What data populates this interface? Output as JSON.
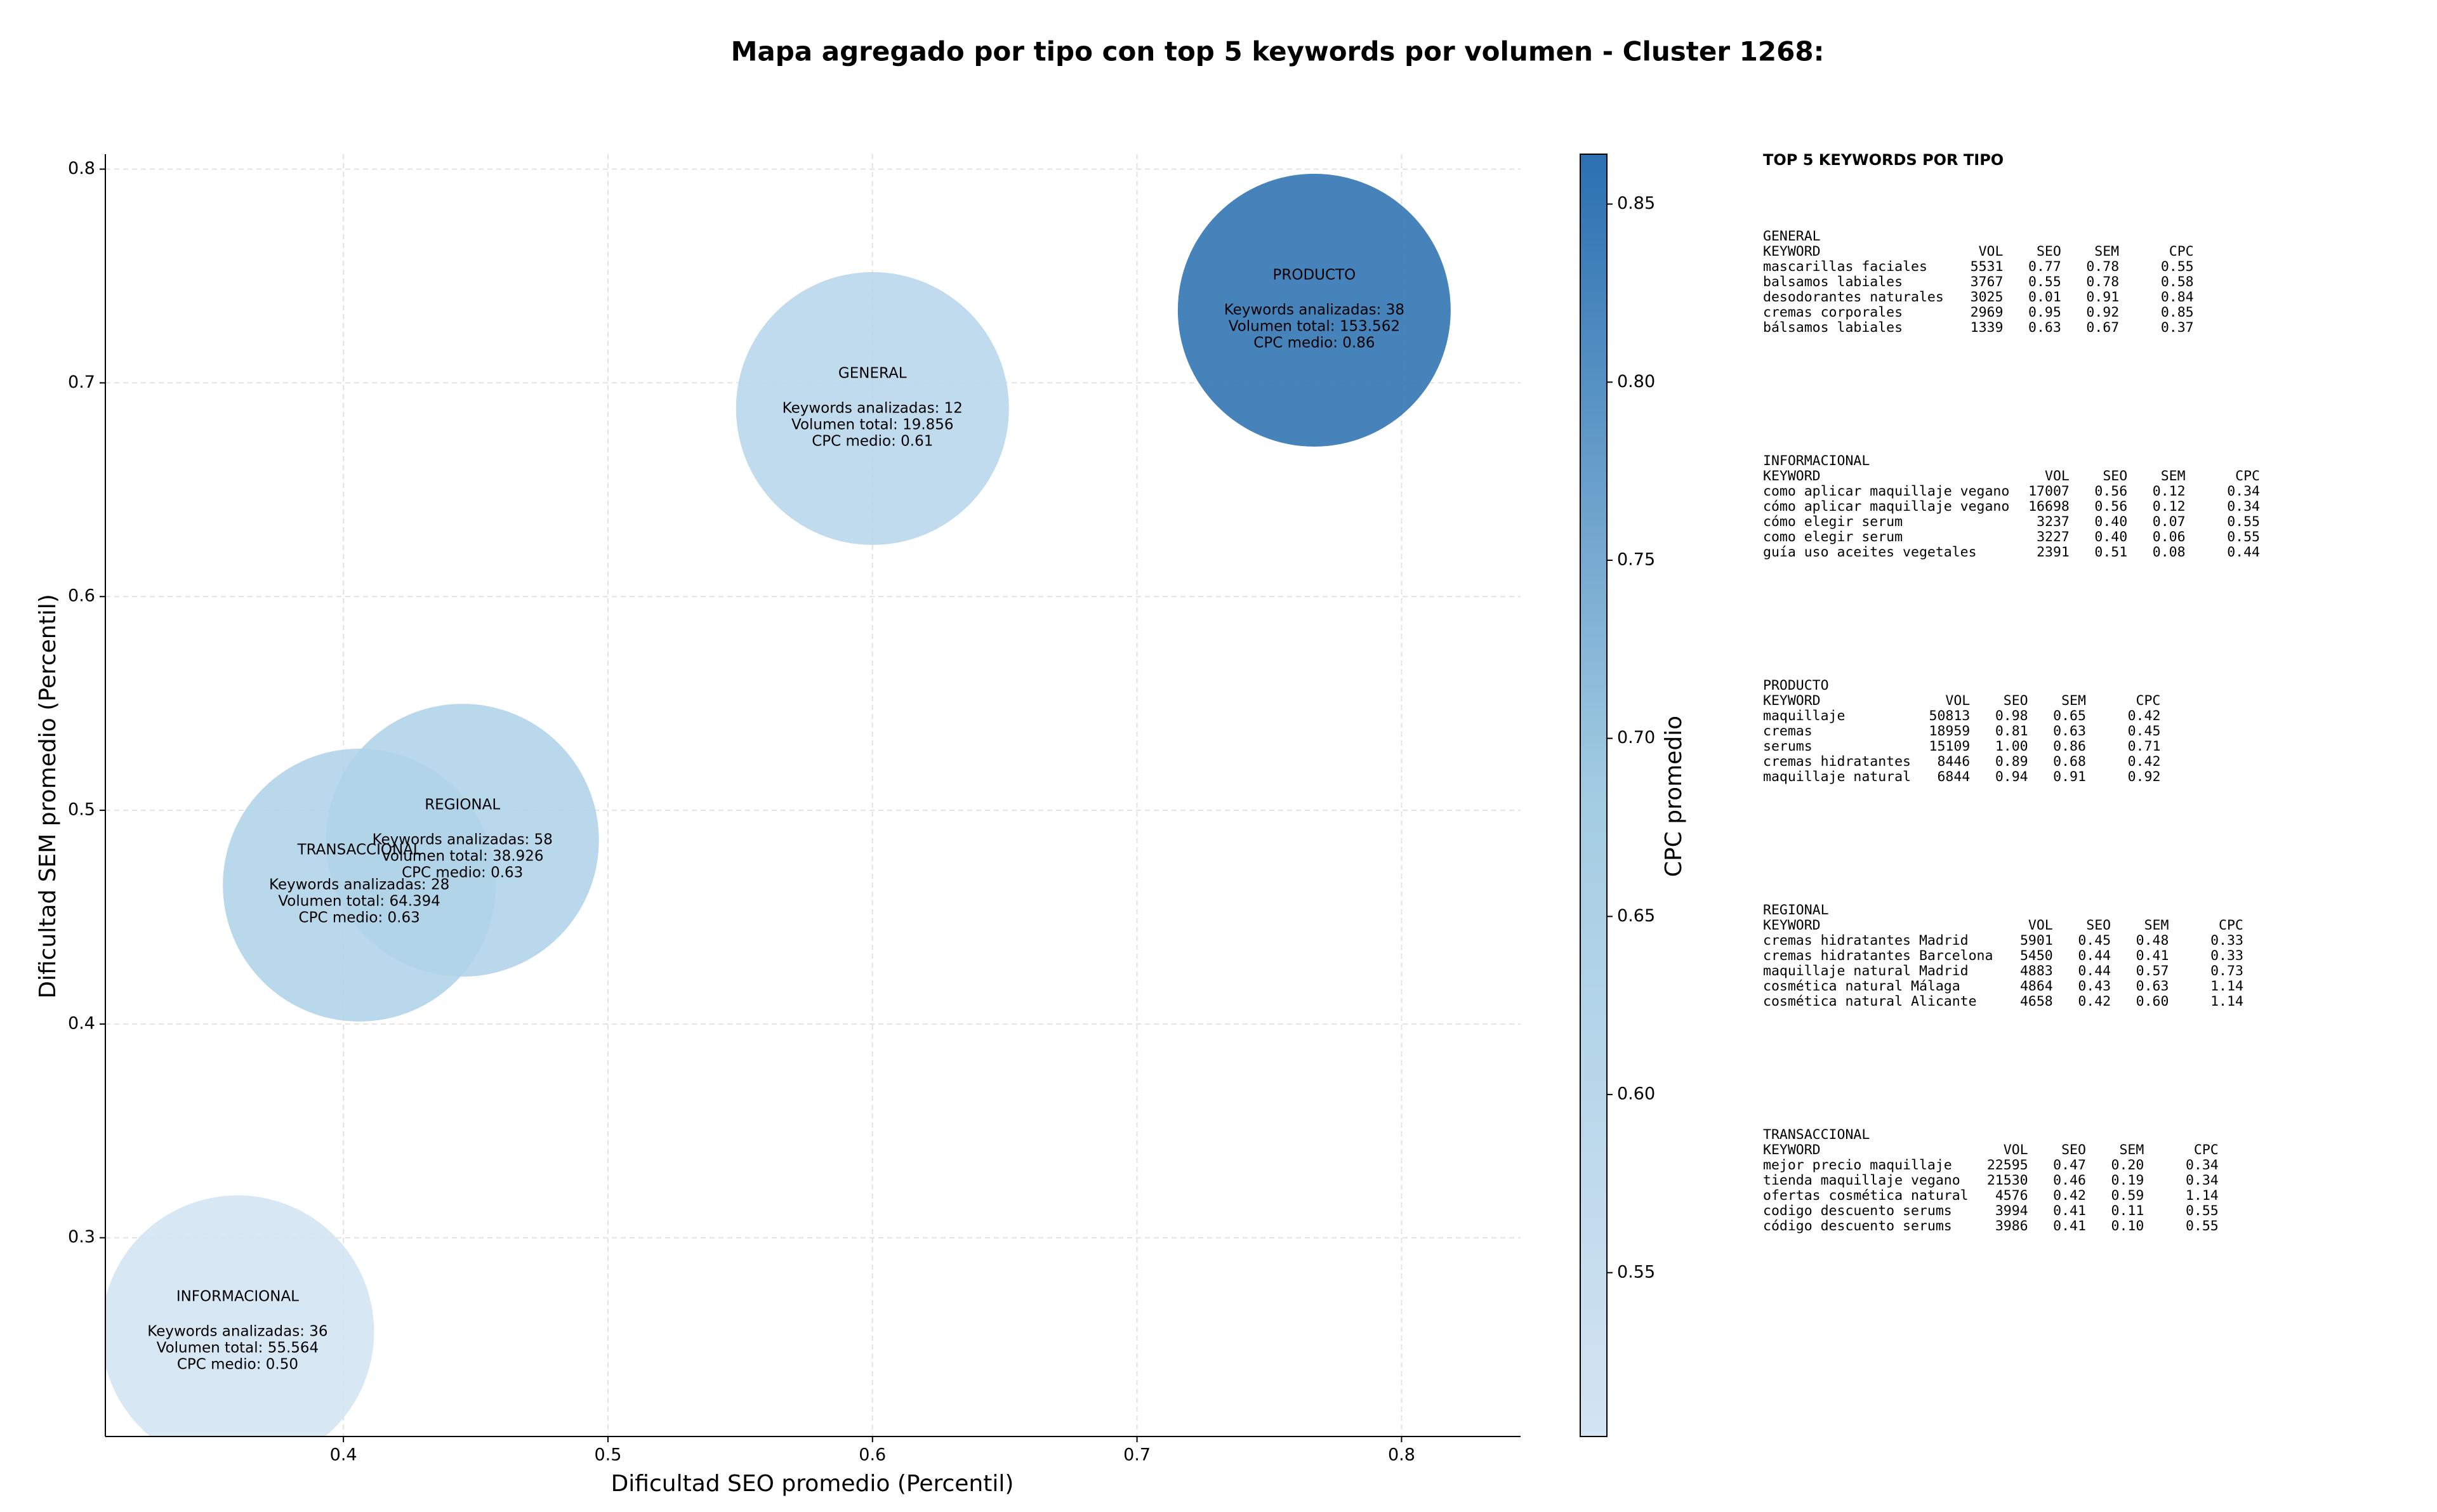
{
  "chart_data": {
    "type": "bubble",
    "title": "Mapa agregado por tipo con top 5 keywords por volumen - Cluster 1268:",
    "xlabel": "Dificultad SEO promedio (Percentil)",
    "ylabel": "Dificultad SEM promedio (Percentil)",
    "xlim": [
      0.31,
      0.845
    ],
    "xticks": [
      0.4,
      0.5,
      0.6,
      0.7,
      0.8
    ],
    "ylim": [
      0.207,
      0.807
    ],
    "yticks": [
      0.3,
      0.4,
      0.5,
      0.6,
      0.7,
      0.8
    ],
    "grid": true,
    "colorbar": {
      "label": "CPC promedio",
      "clim": [
        0.504,
        0.864
      ],
      "ticks": [
        0.55,
        {
          "value": 0.6,
          "label": "0.60"
        },
        0.65,
        {
          "value": 0.7,
          "label": "0.70"
        },
        0.75,
        {
          "value": 0.8,
          "label": "0.80"
        },
        0.85
      ],
      "colormap": [
        "#d3e4f3",
        "#a3cce3",
        "#2b70b1"
      ]
    },
    "points": [
      {
        "label": "GENERAL",
        "x": 0.6,
        "y": 0.688,
        "cpc": 0.61,
        "lines": [
          "Keywords analizadas: 12",
          "Volumen total: 19.856",
          "CPC medio: 0.61"
        ]
      },
      {
        "label": "INFORMACIONAL",
        "x": 0.36,
        "y": 0.256,
        "cpc": 0.5,
        "lines": [
          "Keywords analizadas: 36",
          "Volumen total: 55.564",
          "CPC medio: 0.50"
        ]
      },
      {
        "label": "PRODUCTO",
        "x": 0.767,
        "y": 0.734,
        "cpc": 0.86,
        "lines": [
          "Keywords analizadas: 38",
          "Volumen total: 153.562",
          "CPC medio: 0.86"
        ]
      },
      {
        "label": "REGIONAL",
        "x": 0.445,
        "y": 0.486,
        "cpc": 0.63,
        "lines": [
          "Keywords analizadas: 58",
          "Volumen total: 38.926",
          "CPC medio: 0.63"
        ]
      },
      {
        "label": "TRANSACCIONAL",
        "x": 0.406,
        "y": 0.465,
        "cpc": 0.63,
        "lines": [
          "Keywords analizadas: 28",
          "Volumen total: 64.394",
          "CPC medio: 0.63"
        ]
      }
    ]
  },
  "side_panel": {
    "title": "TOP 5 KEYWORDS POR TIPO",
    "columns": [
      "KEYWORD",
      "VOL",
      "SEO",
      "SEM",
      "CPC"
    ],
    "sections": [
      {
        "heading": "GENERAL",
        "rows": [
          [
            "mascarillas faciales",
            "5531",
            "0.77",
            "0.78",
            "0.55"
          ],
          [
            "balsamos labiales",
            "3767",
            "0.55",
            "0.78",
            "0.58"
          ],
          [
            "desodorantes naturales",
            "3025",
            "0.01",
            "0.91",
            "0.84"
          ],
          [
            "cremas corporales",
            "2969",
            "0.95",
            "0.92",
            "0.85"
          ],
          [
            "bálsamos labiales",
            "1339",
            "0.63",
            "0.67",
            "0.37"
          ]
        ]
      },
      {
        "heading": "INFORMACIONAL",
        "rows": [
          [
            "como aplicar maquillaje vegano",
            "17007",
            "0.56",
            "0.12",
            "0.34"
          ],
          [
            "cómo aplicar maquillaje vegano",
            "16698",
            "0.56",
            "0.12",
            "0.34"
          ],
          [
            "cómo elegir serum",
            "3237",
            "0.40",
            "0.07",
            "0.55"
          ],
          [
            "como elegir serum",
            "3227",
            "0.40",
            "0.06",
            "0.55"
          ],
          [
            "guía uso aceites vegetales",
            "2391",
            "0.51",
            "0.08",
            "0.44"
          ]
        ]
      },
      {
        "heading": "PRODUCTO",
        "rows": [
          [
            "maquillaje",
            "50813",
            "0.98",
            "0.65",
            "0.42"
          ],
          [
            "cremas",
            "18959",
            "0.81",
            "0.63",
            "0.45"
          ],
          [
            "serums",
            "15109",
            "1.00",
            "0.86",
            "0.71"
          ],
          [
            "cremas hidratantes",
            "8446",
            "0.89",
            "0.68",
            "0.42"
          ],
          [
            "maquillaje natural",
            "6844",
            "0.94",
            "0.91",
            "0.92"
          ]
        ]
      },
      {
        "heading": "REGIONAL",
        "rows": [
          [
            "cremas hidratantes Madrid",
            "5901",
            "0.45",
            "0.48",
            "0.33"
          ],
          [
            "cremas hidratantes Barcelona",
            "5450",
            "0.44",
            "0.41",
            "0.33"
          ],
          [
            "maquillaje natural Madrid",
            "4883",
            "0.44",
            "0.57",
            "0.73"
          ],
          [
            "cosmética natural Málaga",
            "4864",
            "0.43",
            "0.63",
            "1.14"
          ],
          [
            "cosmética natural Alicante",
            "4658",
            "0.42",
            "0.60",
            "1.14"
          ]
        ]
      },
      {
        "heading": "TRANSACCIONAL",
        "rows": [
          [
            "mejor precio maquillaje",
            "22595",
            "0.47",
            "0.20",
            "0.34"
          ],
          [
            "tienda maquillaje vegano",
            "21530",
            "0.46",
            "0.19",
            "0.34"
          ],
          [
            "ofertas cosmética natural",
            "4576",
            "0.42",
            "0.59",
            "1.14"
          ],
          [
            "codigo descuento serums",
            "3994",
            "0.41",
            "0.11",
            "0.55"
          ],
          [
            "código descuento serums",
            "3986",
            "0.41",
            "0.10",
            "0.55"
          ]
        ]
      }
    ]
  }
}
